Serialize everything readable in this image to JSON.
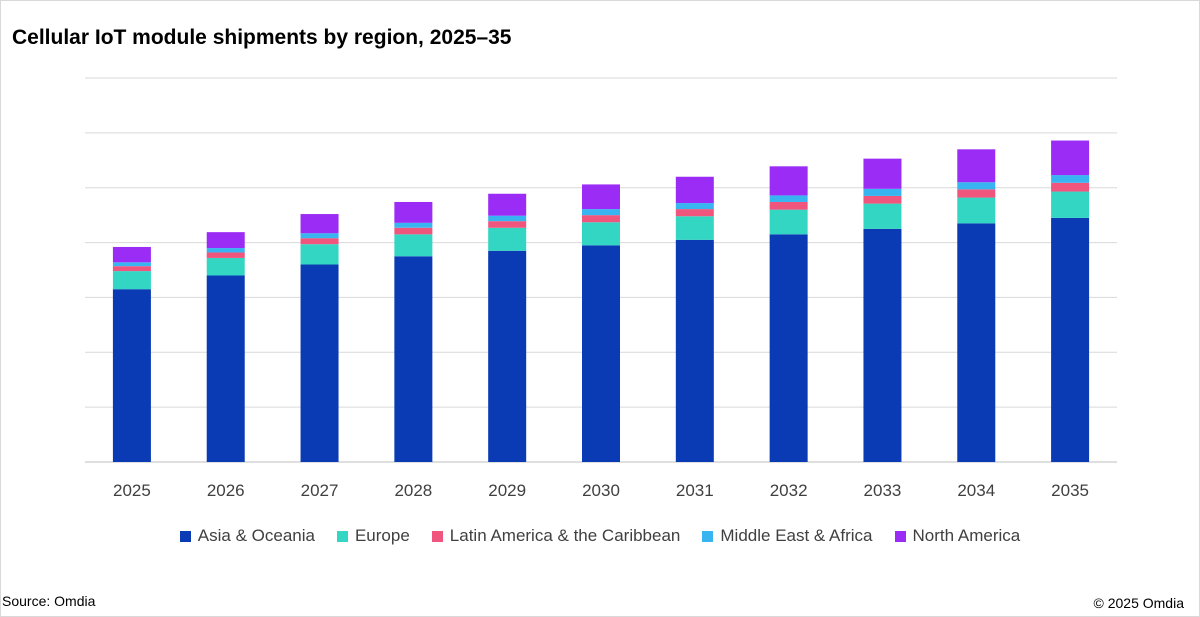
{
  "title": "Cellular IoT module shipments by region, 2025–35",
  "source": "Source: Omdia",
  "copyright": "© 2025 Omdia",
  "chart_data": {
    "type": "bar",
    "stacked": true,
    "title": "Cellular IoT module shipments by region, 2025–35",
    "xlabel": "",
    "ylabel": "",
    "y_tick_labels_shown": false,
    "grid": true,
    "ylim": [
      0,
      7
    ],
    "legend_position": "bottom",
    "categories": [
      "2025",
      "2026",
      "2027",
      "2028",
      "2029",
      "2030",
      "2031",
      "2032",
      "2033",
      "2034",
      "2035"
    ],
    "series": [
      {
        "name": "Asia & Oceania",
        "color": "#0a3ab4",
        "values": [
          3.15,
          3.4,
          3.6,
          3.75,
          3.85,
          3.95,
          4.05,
          4.15,
          4.25,
          4.35,
          4.45
        ]
      },
      {
        "name": "Europe",
        "color": "#33d6c3",
        "values": [
          0.33,
          0.32,
          0.37,
          0.4,
          0.42,
          0.42,
          0.43,
          0.45,
          0.46,
          0.47,
          0.48
        ]
      },
      {
        "name": "Latin America & the Caribbean",
        "color": "#f0557e",
        "values": [
          0.09,
          0.1,
          0.11,
          0.12,
          0.12,
          0.13,
          0.13,
          0.14,
          0.14,
          0.15,
          0.16
        ]
      },
      {
        "name": "Middle East & Africa",
        "color": "#38b5f0",
        "values": [
          0.07,
          0.08,
          0.09,
          0.09,
          0.1,
          0.11,
          0.11,
          0.12,
          0.13,
          0.13,
          0.14
        ]
      },
      {
        "name": "North America",
        "color": "#9b2cf5",
        "values": [
          0.28,
          0.29,
          0.35,
          0.38,
          0.4,
          0.45,
          0.48,
          0.53,
          0.55,
          0.6,
          0.63
        ]
      }
    ]
  }
}
